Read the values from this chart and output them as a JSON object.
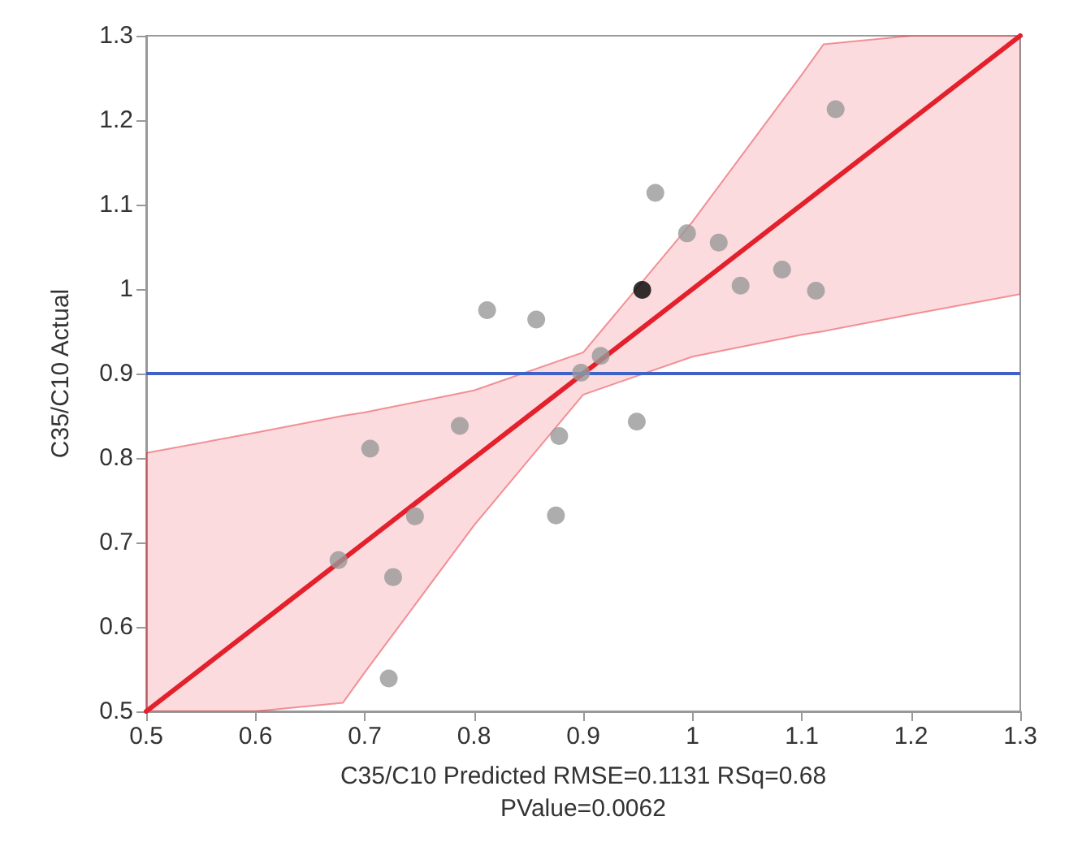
{
  "chart_data": {
    "type": "scatter",
    "xlabel": "C35/C10 Predicted RMSE=0.1131 RSq=0.68 PValue=0.0062",
    "ylabel": "C35/C10 Actual",
    "xlim": [
      0.5,
      1.3
    ],
    "ylim": [
      0.5,
      1.3
    ],
    "xticks": [
      0.5,
      0.6,
      0.7,
      0.8,
      0.9,
      1,
      1.1,
      1.2,
      1.3
    ],
    "yticks": [
      0.5,
      0.6,
      0.7,
      0.8,
      0.9,
      1,
      1.1,
      1.2,
      1.3
    ],
    "grid": false,
    "marker": "circle",
    "series": [
      {
        "type": "line",
        "color": "#e4202c",
        "marker": "none",
        "line_style": "solid",
        "x": [
          0.5,
          0.6,
          0.68,
          0.7,
          0.8,
          0.9,
          1.0,
          1.1,
          1.12,
          1.2,
          1.3
        ],
        "values": [
          0.5,
          0.6,
          0.68,
          0.7,
          0.8,
          0.9,
          1.0,
          1.1,
          1.12,
          1.2,
          1.3
        ],
        "lower": [
          0.5,
          0.5,
          0.51,
          0.546,
          0.72,
          0.875,
          0.92,
          0.946,
          0.95,
          0.97,
          0.994
        ],
        "upper": [
          0.806,
          0.83,
          0.85,
          0.854,
          0.88,
          0.925,
          1.08,
          1.254,
          1.29,
          1.3,
          1.3
        ]
      },
      {
        "color": "#999999",
        "x": [
          0.812,
          0.857,
          0.916,
          0.898,
          0.787,
          0.705,
          0.878,
          0.746,
          0.875,
          0.676,
          0.726,
          0.722,
          1.131,
          0.966,
          0.995,
          1.024,
          1.082,
          1.044,
          1.113,
          0.949
        ],
        "values": [
          0.975,
          0.964,
          0.921,
          0.901,
          0.838,
          0.811,
          0.826,
          0.731,
          0.732,
          0.679,
          0.659,
          0.539,
          1.213,
          1.114,
          1.066,
          1.055,
          1.023,
          1.004,
          0.998,
          0.843
        ]
      },
      {
        "color": "#000000",
        "x": [
          0.954
        ],
        "values": [
          0.999
        ]
      }
    ],
    "ref_lines": [
      {
        "axis": "y",
        "value": 0.9,
        "color": "#4062c8"
      }
    ]
  }
}
